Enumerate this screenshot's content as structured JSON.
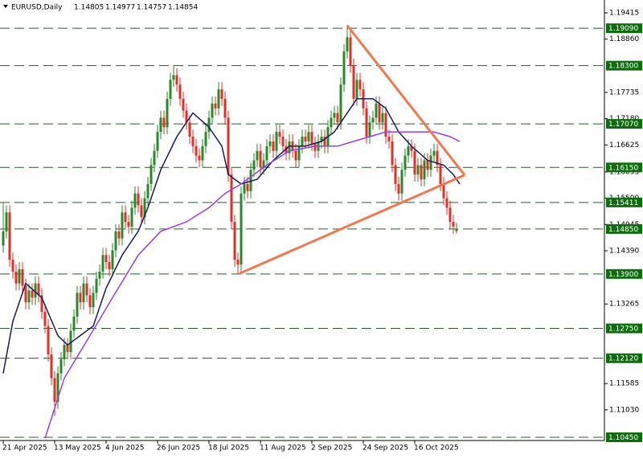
{
  "chart_data": {
    "type": "candlestick",
    "symbol": "EURUSD,Daily",
    "up_color": "#2a8a2a",
    "down_color": "#e0302a",
    "level_color": "#0e6b0e",
    "trendline_color": "#f07850",
    "ylim": [
      1.10382,
      1.19687
    ],
    "yticks": [
      {
        "value": 1.19415,
        "label": "1.19415"
      },
      {
        "value": 1.1886,
        "label": "1.18860"
      },
      {
        "value": 1.17735,
        "label": "1.17735"
      },
      {
        "value": 1.1718,
        "label": "1.17180"
      },
      {
        "value": 1.16625,
        "label": "1.16625"
      },
      {
        "value": 1.16055,
        "label": "1.16055"
      },
      {
        "value": 1.155,
        "label": "1.15500"
      },
      {
        "value": 1.14945,
        "label": "1.14945"
      },
      {
        "value": 1.1439,
        "label": "1.14390"
      },
      {
        "value": 1.13265,
        "label": "1.13265"
      },
      {
        "value": 1.11585,
        "label": "1.11585"
      },
      {
        "value": 1.1103,
        "label": "1.11030"
      }
    ],
    "levels": [
      {
        "value": 1.1909,
        "label": "1.19090"
      },
      {
        "value": 1.183,
        "label": "1.18300"
      },
      {
        "value": 1.1707,
        "label": "1.17070"
      },
      {
        "value": 1.1615,
        "label": "1.16150"
      },
      {
        "value": 1.15411,
        "label": "1.15411"
      },
      {
        "value": 1.1485,
        "label": "1.14850"
      },
      {
        "value": 1.139,
        "label": "1.13900"
      },
      {
        "value": 1.1275,
        "label": "1.12750"
      },
      {
        "value": 1.1212,
        "label": "1.12120"
      },
      {
        "value": 1.1045,
        "label": "1.10450"
      }
    ],
    "categories": [
      "21 Apr 2025",
      null,
      null,
      null,
      null,
      null,
      null,
      null,
      null,
      null,
      null,
      null,
      null,
      null,
      null,
      null,
      "13 May 2025",
      null,
      null,
      null,
      null,
      null,
      null,
      null,
      null,
      null,
      null,
      null,
      null,
      null,
      null,
      null,
      "4 Jun 2025",
      null,
      null,
      null,
      null,
      null,
      null,
      null,
      null,
      null,
      null,
      null,
      null,
      null,
      null,
      null,
      "26 Jun 2025",
      null,
      null,
      null,
      null,
      null,
      null,
      null,
      null,
      null,
      null,
      null,
      null,
      null,
      null,
      null,
      "18 Jul 2025",
      null,
      null,
      null,
      null,
      null,
      null,
      null,
      null,
      null,
      null,
      null,
      null,
      null,
      null,
      null,
      "11 Aug 2025",
      null,
      null,
      null,
      null,
      null,
      null,
      null,
      null,
      null,
      null,
      null,
      null,
      null,
      null,
      null,
      "2 Sep 2025",
      null,
      null,
      null,
      null,
      null,
      null,
      null,
      null,
      null,
      null,
      null,
      null,
      null,
      null,
      null,
      "24 Sep 2025",
      null,
      null,
      null,
      null,
      null,
      null,
      null,
      null,
      null,
      null,
      null,
      null,
      null,
      null,
      null,
      "16 Oct 2025",
      null,
      null,
      null,
      null,
      null,
      null,
      null,
      null,
      null,
      null,
      null,
      null,
      null
    ],
    "candles": [
      [
        1.145,
        1.154,
        1.1435,
        1.148
      ],
      [
        1.148,
        1.1535,
        1.1465,
        1.152
      ],
      [
        1.152,
        1.1535,
        1.1405,
        1.142
      ],
      [
        1.142,
        1.1435,
        1.138,
        1.1395
      ],
      [
        1.1395,
        1.141,
        1.1355,
        1.137
      ],
      [
        1.137,
        1.1415,
        1.1355,
        1.14
      ],
      [
        1.14,
        1.1415,
        1.135,
        1.1365
      ],
      [
        1.1365,
        1.138,
        1.1315,
        1.133
      ],
      [
        1.133,
        1.137,
        1.1315,
        1.1355
      ],
      [
        1.1355,
        1.137,
        1.1325,
        1.134
      ],
      [
        1.134,
        1.1385,
        1.1325,
        1.137
      ],
      [
        1.137,
        1.1385,
        1.133,
        1.1345
      ],
      [
        1.1345,
        1.136,
        1.1295,
        1.131
      ],
      [
        1.131,
        1.1325,
        1.1265,
        1.128
      ],
      [
        1.128,
        1.1295,
        1.1205,
        1.122
      ],
      [
        1.122,
        1.1235,
        1.1155,
        1.117
      ],
      [
        1.117,
        1.1185,
        1.109,
        1.112
      ],
      [
        1.112,
        1.1195,
        1.1105,
        1.118
      ],
      [
        1.118,
        1.1225,
        1.1165,
        1.121
      ],
      [
        1.121,
        1.1255,
        1.1195,
        1.124
      ],
      [
        1.124,
        1.1255,
        1.121,
        1.1225
      ],
      [
        1.1225,
        1.1285,
        1.121,
        1.127
      ],
      [
        1.127,
        1.1315,
        1.1255,
        1.13
      ],
      [
        1.13,
        1.1365,
        1.1285,
        1.135
      ],
      [
        1.135,
        1.1365,
        1.1315,
        1.133
      ],
      [
        1.133,
        1.1385,
        1.1315,
        1.137
      ],
      [
        1.137,
        1.1385,
        1.133,
        1.1345
      ],
      [
        1.1345,
        1.136,
        1.1305,
        1.132
      ],
      [
        1.132,
        1.1365,
        1.1305,
        1.135
      ],
      [
        1.135,
        1.1395,
        1.1335,
        1.138
      ],
      [
        1.138,
        1.141,
        1.1365,
        1.1395
      ],
      [
        1.1395,
        1.1445,
        1.138,
        1.143
      ],
      [
        1.143,
        1.1445,
        1.14,
        1.1415
      ],
      [
        1.1415,
        1.143,
        1.1385,
        1.14
      ],
      [
        1.14,
        1.1455,
        1.1385,
        1.144
      ],
      [
        1.144,
        1.1495,
        1.1425,
        1.148
      ],
      [
        1.148,
        1.1495,
        1.145,
        1.1465
      ],
      [
        1.1465,
        1.1535,
        1.145,
        1.152
      ],
      [
        1.152,
        1.1535,
        1.1485,
        1.15
      ],
      [
        1.15,
        1.1515,
        1.1475,
        1.149
      ],
      [
        1.149,
        1.1545,
        1.1475,
        1.153
      ],
      [
        1.153,
        1.1575,
        1.1515,
        1.156
      ],
      [
        1.156,
        1.1575,
        1.152,
        1.1535
      ],
      [
        1.1535,
        1.155,
        1.1495,
        1.151
      ],
      [
        1.151,
        1.1565,
        1.1495,
        1.155
      ],
      [
        1.155,
        1.1595,
        1.1535,
        1.158
      ],
      [
        1.158,
        1.1635,
        1.1565,
        1.162
      ],
      [
        1.162,
        1.1665,
        1.1605,
        1.165
      ],
      [
        1.165,
        1.1705,
        1.1635,
        1.169
      ],
      [
        1.169,
        1.1735,
        1.1675,
        1.172
      ],
      [
        1.172,
        1.1735,
        1.1685,
        1.17
      ],
      [
        1.17,
        1.1775,
        1.1685,
        1.176
      ],
      [
        1.176,
        1.1815,
        1.1745,
        1.18
      ],
      [
        1.18,
        1.183,
        1.1785,
        1.181
      ],
      [
        1.181,
        1.1825,
        1.1775,
        1.179
      ],
      [
        1.179,
        1.1805,
        1.1745,
        1.176
      ],
      [
        1.176,
        1.1775,
        1.172,
        1.1735
      ],
      [
        1.1735,
        1.175,
        1.1695,
        1.171
      ],
      [
        1.171,
        1.1725,
        1.1665,
        1.168
      ],
      [
        1.168,
        1.1695,
        1.1645,
        1.166
      ],
      [
        1.166,
        1.1675,
        1.1625,
        1.164
      ],
      [
        1.164,
        1.1655,
        1.1615,
        1.163
      ],
      [
        1.163,
        1.1675,
        1.1615,
        1.166
      ],
      [
        1.166,
        1.1705,
        1.1645,
        1.169
      ],
      [
        1.169,
        1.1735,
        1.1675,
        1.172
      ],
      [
        1.172,
        1.1765,
        1.1705,
        1.175
      ],
      [
        1.175,
        1.1765,
        1.1725,
        1.174
      ],
      [
        1.174,
        1.1795,
        1.1725,
        1.178
      ],
      [
        1.178,
        1.1795,
        1.1745,
        1.176
      ],
      [
        1.176,
        1.1775,
        1.1705,
        1.172
      ],
      [
        1.172,
        1.1735,
        1.1585,
        1.16
      ],
      [
        1.16,
        1.1615,
        1.1485,
        1.15
      ],
      [
        1.15,
        1.1515,
        1.1405,
        1.142
      ],
      [
        1.142,
        1.1435,
        1.139,
        1.141
      ],
      [
        1.141,
        1.1575,
        1.1395,
        1.156
      ],
      [
        1.156,
        1.1595,
        1.1545,
        1.158
      ],
      [
        1.158,
        1.1595,
        1.155,
        1.1565
      ],
      [
        1.1565,
        1.1625,
        1.155,
        1.161
      ],
      [
        1.161,
        1.1645,
        1.1595,
        1.163
      ],
      [
        1.163,
        1.1665,
        1.1615,
        1.165
      ],
      [
        1.165,
        1.1665,
        1.16,
        1.1615
      ],
      [
        1.1615,
        1.1645,
        1.16,
        1.163
      ],
      [
        1.163,
        1.1675,
        1.1615,
        1.166
      ],
      [
        1.166,
        1.1685,
        1.1645,
        1.167
      ],
      [
        1.167,
        1.1685,
        1.1635,
        1.165
      ],
      [
        1.165,
        1.1705,
        1.1635,
        1.169
      ],
      [
        1.169,
        1.1705,
        1.1665,
        1.168
      ],
      [
        1.168,
        1.1695,
        1.1645,
        1.166
      ],
      [
        1.166,
        1.1675,
        1.163,
        1.1645
      ],
      [
        1.1645,
        1.1685,
        1.163,
        1.167
      ],
      [
        1.167,
        1.1685,
        1.1635,
        1.165
      ],
      [
        1.165,
        1.1665,
        1.1615,
        1.163
      ],
      [
        1.163,
        1.1675,
        1.1615,
        1.166
      ],
      [
        1.166,
        1.1695,
        1.1645,
        1.168
      ],
      [
        1.168,
        1.1695,
        1.1655,
        1.167
      ],
      [
        1.167,
        1.1705,
        1.1655,
        1.169
      ],
      [
        1.169,
        1.1705,
        1.165,
        1.1665
      ],
      [
        1.1665,
        1.168,
        1.1635,
        1.165
      ],
      [
        1.165,
        1.1685,
        1.1635,
        1.167
      ],
      [
        1.167,
        1.1695,
        1.1655,
        1.168
      ],
      [
        1.168,
        1.1695,
        1.1645,
        1.166
      ],
      [
        1.166,
        1.1715,
        1.1645,
        1.17
      ],
      [
        1.17,
        1.1735,
        1.1685,
        1.172
      ],
      [
        1.172,
        1.1745,
        1.1705,
        1.173
      ],
      [
        1.173,
        1.1745,
        1.1695,
        1.171
      ],
      [
        1.171,
        1.1805,
        1.1695,
        1.179
      ],
      [
        1.179,
        1.1875,
        1.1775,
        1.186
      ],
      [
        1.186,
        1.1915,
        1.1845,
        1.189
      ],
      [
        1.189,
        1.1905,
        1.1815,
        1.183
      ],
      [
        1.183,
        1.1845,
        1.1745,
        1.176
      ],
      [
        1.176,
        1.1815,
        1.1745,
        1.18
      ],
      [
        1.18,
        1.1815,
        1.1765,
        1.178
      ],
      [
        1.178,
        1.1795,
        1.1725,
        1.174
      ],
      [
        1.174,
        1.1755,
        1.1665,
        1.168
      ],
      [
        1.168,
        1.1725,
        1.1665,
        1.171
      ],
      [
        1.171,
        1.1735,
        1.1695,
        1.172
      ],
      [
        1.172,
        1.1765,
        1.1705,
        1.175
      ],
      [
        1.175,
        1.1765,
        1.1695,
        1.171
      ],
      [
        1.171,
        1.1745,
        1.1695,
        1.173
      ],
      [
        1.173,
        1.1745,
        1.1665,
        1.168
      ],
      [
        1.168,
        1.1695,
        1.1655,
        1.167
      ],
      [
        1.167,
        1.1685,
        1.1605,
        1.162
      ],
      [
        1.162,
        1.1635,
        1.1565,
        1.158
      ],
      [
        1.158,
        1.1595,
        1.1545,
        1.156
      ],
      [
        1.156,
        1.1625,
        1.1545,
        1.161
      ],
      [
        1.161,
        1.1655,
        1.1595,
        1.164
      ],
      [
        1.164,
        1.1675,
        1.1625,
        1.166
      ],
      [
        1.166,
        1.1675,
        1.1635,
        1.165
      ],
      [
        1.165,
        1.1665,
        1.1585,
        1.16
      ],
      [
        1.16,
        1.1635,
        1.1585,
        1.162
      ],
      [
        1.162,
        1.1635,
        1.1575,
        1.159
      ],
      [
        1.159,
        1.1645,
        1.1575,
        1.163
      ],
      [
        1.163,
        1.1645,
        1.1595,
        1.161
      ],
      [
        1.161,
        1.1655,
        1.1595,
        1.164
      ],
      [
        1.164,
        1.1665,
        1.1625,
        1.165
      ],
      [
        1.165,
        1.1665,
        1.1605,
        1.162
      ],
      [
        1.162,
        1.1635,
        1.1565,
        1.158
      ],
      [
        1.158,
        1.1595,
        1.1535,
        1.155
      ],
      [
        1.155,
        1.1565,
        1.1515,
        1.153
      ],
      [
        1.153,
        1.1545,
        1.1485,
        1.15
      ],
      [
        1.15,
        1.1515,
        1.1475,
        1.149
      ],
      [
        1.14805,
        1.14977,
        1.14757,
        1.14854
      ]
    ],
    "moving_averages": [
      {
        "color": "#1a1a5e",
        "x": [
          0,
          3,
          7,
          12,
          17,
          20,
          24,
          28,
          32,
          37,
          42,
          45,
          49,
          54,
          59,
          64,
          68,
          70,
          74,
          79,
          84,
          89,
          94,
          99,
          103,
          107,
          110,
          115,
          119,
          123,
          127,
          132,
          137,
          140,
          142
        ],
        "values": [
          1.118,
          1.129,
          1.137,
          1.134,
          1.126,
          1.124,
          1.126,
          1.128,
          1.136,
          1.143,
          1.148,
          1.153,
          1.161,
          1.168,
          1.173,
          1.17,
          1.166,
          1.16,
          1.158,
          1.159,
          1.163,
          1.166,
          1.166,
          1.167,
          1.169,
          1.173,
          1.176,
          1.176,
          1.174,
          1.169,
          1.166,
          1.163,
          1.162,
          1.16,
          1.158
        ]
      },
      {
        "color": "#9a3ee0",
        "x": [
          13,
          19,
          27,
          34,
          42,
          49,
          57,
          64,
          69,
          74,
          82,
          89,
          97,
          104,
          109,
          114,
          119,
          124,
          129,
          134,
          139,
          142
        ],
        "values": [
          1.1043,
          1.117,
          1.126,
          1.134,
          1.143,
          1.148,
          1.15,
          1.153,
          1.156,
          1.158,
          1.162,
          1.165,
          1.166,
          1.166,
          1.167,
          1.168,
          1.169,
          1.169,
          1.169,
          1.169,
          1.168,
          1.167
        ]
      }
    ],
    "trendlines": [
      {
        "x": [
          107,
          143.5
        ],
        "y": [
          1.1915,
          1.1599
        ]
      },
      {
        "x": [
          73.5,
          143.5
        ],
        "y": [
          1.1391,
          1.1599
        ]
      }
    ]
  }
}
